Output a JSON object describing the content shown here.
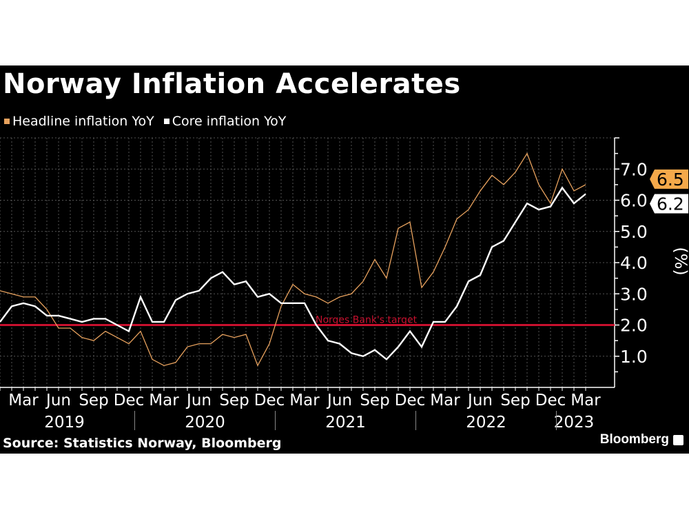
{
  "title": "Norway Inflation Accelerates",
  "source": "Source: Statistics Norway, Bloomberg",
  "logo": "Bloomberg",
  "colors": {
    "headline": "#e8a25e",
    "core": "#ffffff",
    "target": "#c8102e",
    "label_headline": "#f5a94a",
    "background": "#000000"
  },
  "chart_data": {
    "type": "line",
    "title": "Norway Inflation Accelerates",
    "ylabel": "(%)",
    "ylim": [
      0,
      8
    ],
    "yticks": [
      "1.0",
      "2.0",
      "3.0",
      "4.0",
      "5.0",
      "6.0",
      "7.0"
    ],
    "grid": true,
    "legend_position": "top-left",
    "x_start": "2019-01",
    "x_end": "2023-03",
    "x_tick_labels": [
      "Mar",
      "Jun",
      "Sep",
      "Dec",
      "Mar",
      "Jun",
      "Sep",
      "Dec",
      "Mar",
      "Jun",
      "Sep",
      "Dec",
      "Mar",
      "Jun",
      "Sep",
      "Dec",
      "Mar"
    ],
    "year_labels": [
      "2019",
      "2020",
      "2021",
      "2022",
      "2023"
    ],
    "reference_line": {
      "value": 2.0,
      "label": "Norges Bank's target"
    },
    "series": [
      {
        "name": "Headline inflation YoY",
        "last_label": "6.5",
        "values": [
          3.1,
          3.0,
          2.9,
          2.9,
          2.5,
          1.9,
          1.9,
          1.6,
          1.5,
          1.8,
          1.6,
          1.4,
          1.8,
          0.9,
          0.7,
          0.8,
          1.3,
          1.4,
          1.4,
          1.7,
          1.6,
          1.7,
          0.7,
          1.4,
          2.6,
          3.3,
          3.0,
          2.9,
          2.7,
          2.9,
          3.0,
          3.4,
          4.1,
          3.5,
          5.1,
          5.3,
          3.2,
          3.7,
          4.5,
          5.4,
          5.7,
          6.3,
          6.8,
          6.5,
          6.9,
          7.5,
          6.5,
          5.9,
          7.0,
          6.3,
          6.5
        ]
      },
      {
        "name": "Core inflation YoY",
        "last_label": "6.2",
        "values": [
          2.1,
          2.6,
          2.7,
          2.6,
          2.3,
          2.3,
          2.2,
          2.1,
          2.2,
          2.2,
          2.0,
          1.8,
          2.9,
          2.1,
          2.1,
          2.8,
          3.0,
          3.1,
          3.5,
          3.7,
          3.3,
          3.4,
          2.9,
          3.0,
          2.7,
          2.7,
          2.7,
          2.0,
          1.5,
          1.4,
          1.1,
          1.0,
          1.2,
          0.9,
          1.3,
          1.8,
          1.3,
          2.1,
          2.1,
          2.6,
          3.4,
          3.6,
          4.5,
          4.7,
          5.3,
          5.9,
          5.7,
          5.8,
          6.4,
          5.9,
          6.2
        ]
      }
    ]
  }
}
